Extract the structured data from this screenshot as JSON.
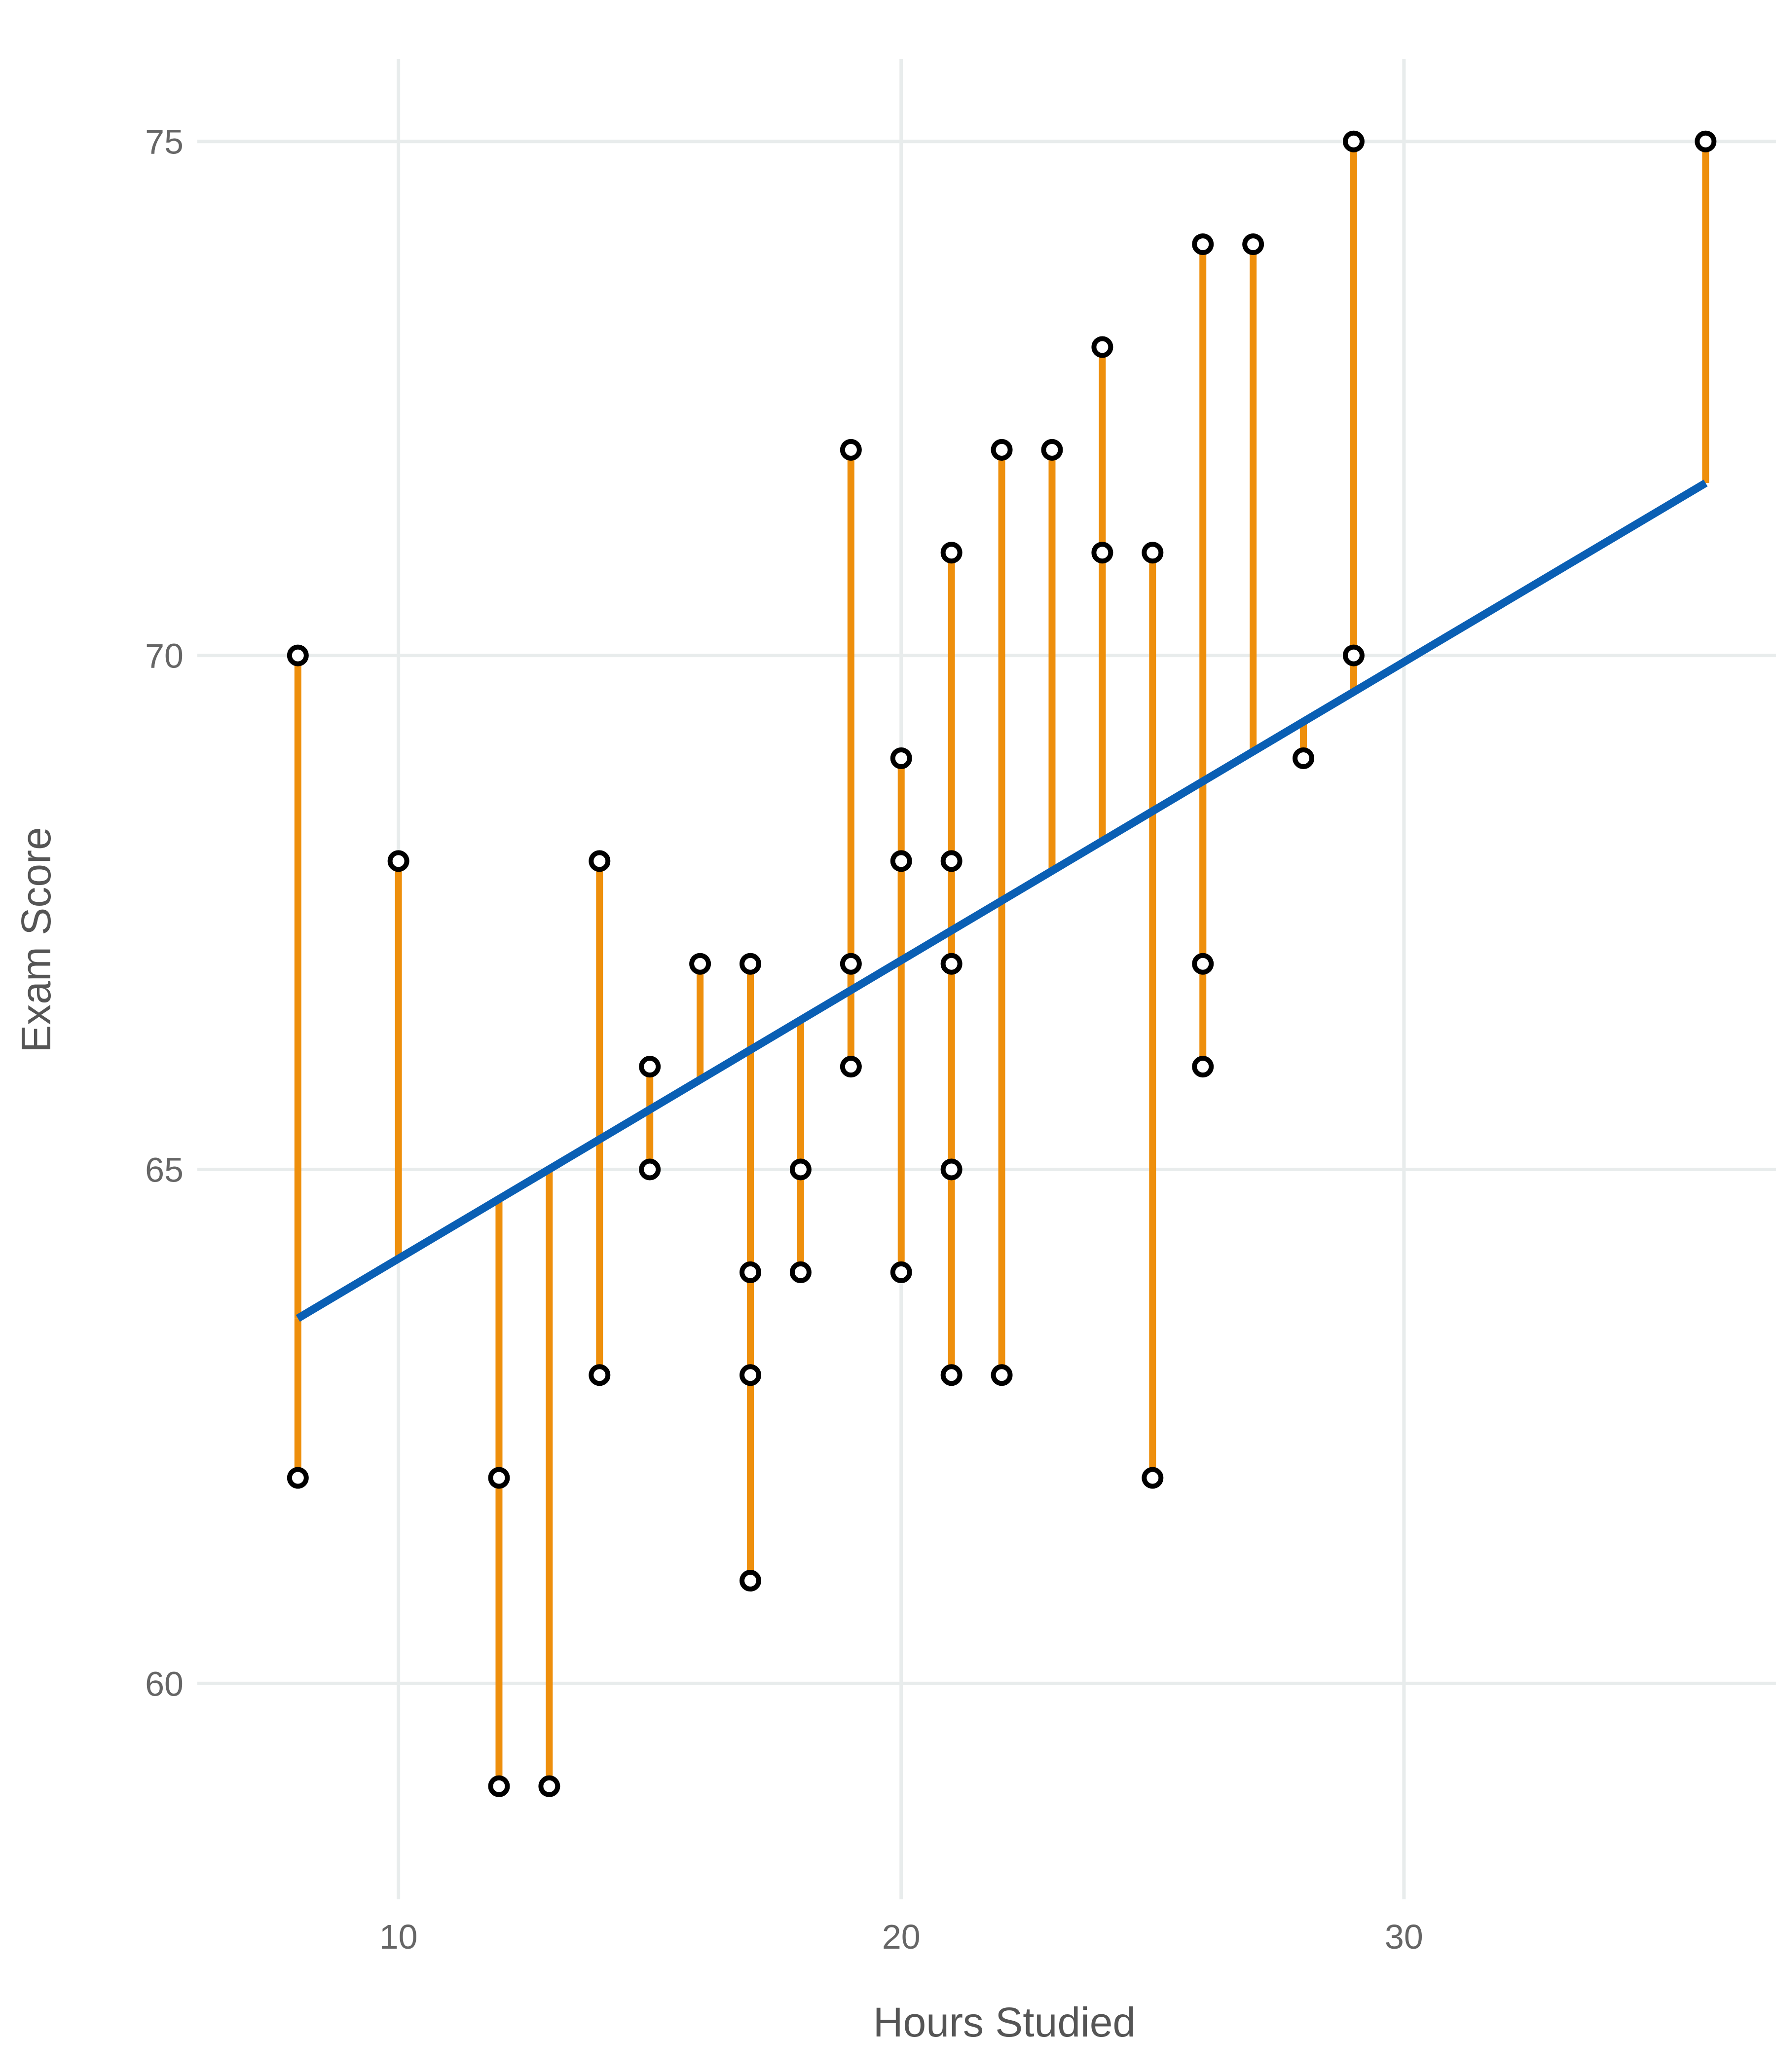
{
  "chart_data": {
    "type": "scatter",
    "xlabel": "Hours Studied",
    "ylabel": "Exam Score",
    "xlim": [
      6,
      37.4
    ],
    "ylim": [
      57.9,
      75.8
    ],
    "xticks": [
      10,
      20,
      30
    ],
    "yticks": [
      60,
      65,
      70,
      75
    ],
    "grid": true,
    "regression": {
      "slope": 0.2902,
      "intercept": 61.23,
      "x_range": [
        8,
        36
      ]
    },
    "points": [
      {
        "x": 8,
        "y": 70
      },
      {
        "x": 8,
        "y": 62
      },
      {
        "x": 10,
        "y": 68
      },
      {
        "x": 12,
        "y": 62
      },
      {
        "x": 12,
        "y": 59
      },
      {
        "x": 13,
        "y": 59
      },
      {
        "x": 14,
        "y": 68
      },
      {
        "x": 14,
        "y": 63
      },
      {
        "x": 15,
        "y": 66
      },
      {
        "x": 15,
        "y": 65
      },
      {
        "x": 16,
        "y": 67
      },
      {
        "x": 17,
        "y": 67
      },
      {
        "x": 17,
        "y": 64
      },
      {
        "x": 17,
        "y": 63
      },
      {
        "x": 17,
        "y": 61
      },
      {
        "x": 18,
        "y": 65
      },
      {
        "x": 18,
        "y": 64
      },
      {
        "x": 19,
        "y": 72
      },
      {
        "x": 19,
        "y": 67
      },
      {
        "x": 19,
        "y": 66
      },
      {
        "x": 20,
        "y": 69
      },
      {
        "x": 20,
        "y": 68
      },
      {
        "x": 20,
        "y": 64
      },
      {
        "x": 21,
        "y": 71
      },
      {
        "x": 21,
        "y": 68
      },
      {
        "x": 21,
        "y": 67
      },
      {
        "x": 21,
        "y": 65
      },
      {
        "x": 21,
        "y": 63
      },
      {
        "x": 22,
        "y": 72
      },
      {
        "x": 22,
        "y": 63
      },
      {
        "x": 23,
        "y": 72
      },
      {
        "x": 24,
        "y": 73
      },
      {
        "x": 24,
        "y": 71
      },
      {
        "x": 25,
        "y": 71
      },
      {
        "x": 25,
        "y": 62
      },
      {
        "x": 26,
        "y": 74
      },
      {
        "x": 26,
        "y": 67
      },
      {
        "x": 26,
        "y": 66
      },
      {
        "x": 27,
        "y": 74
      },
      {
        "x": 28,
        "y": 69
      },
      {
        "x": 29,
        "y": 75
      },
      {
        "x": 29,
        "y": 70
      },
      {
        "x": 36,
        "y": 75
      }
    ],
    "colors": {
      "points_stroke": "#000000",
      "points_fill": "#ffffff",
      "regression_line": "#0a5fb4",
      "residuals": "#ee8f0c",
      "grid": "#e8ecec"
    }
  }
}
